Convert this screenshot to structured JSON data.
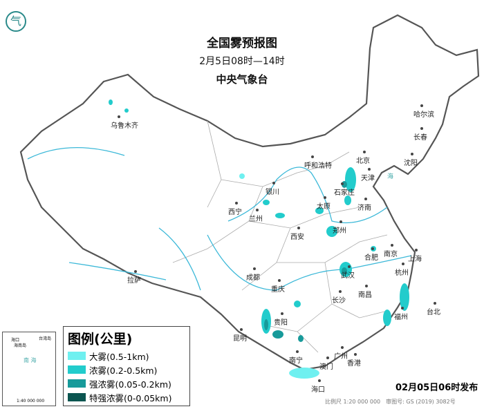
{
  "header": {
    "title": "全国雾预报图",
    "time_range": "2月5日08时—14时",
    "agency": "中央气象台"
  },
  "legend": {
    "title": "图例(公里)",
    "items": [
      {
        "label": "大雾(0.5-1km)",
        "color": "#6ff0f0"
      },
      {
        "label": "浓雾(0.2-0.5km)",
        "color": "#22cccc"
      },
      {
        "label": "强浓雾(0.05-0.2km)",
        "color": "#179a9a"
      },
      {
        "label": "特强浓雾(0-0.05km)",
        "color": "#0b5550"
      }
    ]
  },
  "cities": [
    {
      "name": "乌鲁木齐"
    },
    {
      "name": "哈尔滨"
    },
    {
      "name": "长春"
    },
    {
      "name": "沈阳"
    },
    {
      "name": "北京"
    },
    {
      "name": "天津"
    },
    {
      "name": "呼和浩特"
    },
    {
      "name": "石家庄"
    },
    {
      "name": "银川"
    },
    {
      "name": "太原"
    },
    {
      "name": "济南"
    },
    {
      "name": "西宁"
    },
    {
      "name": "兰州"
    },
    {
      "name": "郑州"
    },
    {
      "name": "西安"
    },
    {
      "name": "南京"
    },
    {
      "name": "合肥"
    },
    {
      "name": "上海"
    },
    {
      "name": "拉萨"
    },
    {
      "name": "成都"
    },
    {
      "name": "武汉"
    },
    {
      "name": "杭州"
    },
    {
      "name": "重庆"
    },
    {
      "name": "长沙"
    },
    {
      "name": "南昌"
    },
    {
      "name": "台北"
    },
    {
      "name": "福州"
    },
    {
      "name": "贵阳"
    },
    {
      "name": "昆明"
    },
    {
      "name": "南宁"
    },
    {
      "name": "广州"
    },
    {
      "name": "香港"
    },
    {
      "name": "澳门"
    },
    {
      "name": "海口"
    }
  ],
  "inset": {
    "sea": "南 海",
    "labels": [
      "海口",
      "海南岛",
      "台湾岛"
    ],
    "scale": "1:40 000 000"
  },
  "published": "02月05日06时发布",
  "footer": "比例尺 1:20 000 000　审图号: GS (2019) 3082号",
  "logo_glyph": "气"
}
